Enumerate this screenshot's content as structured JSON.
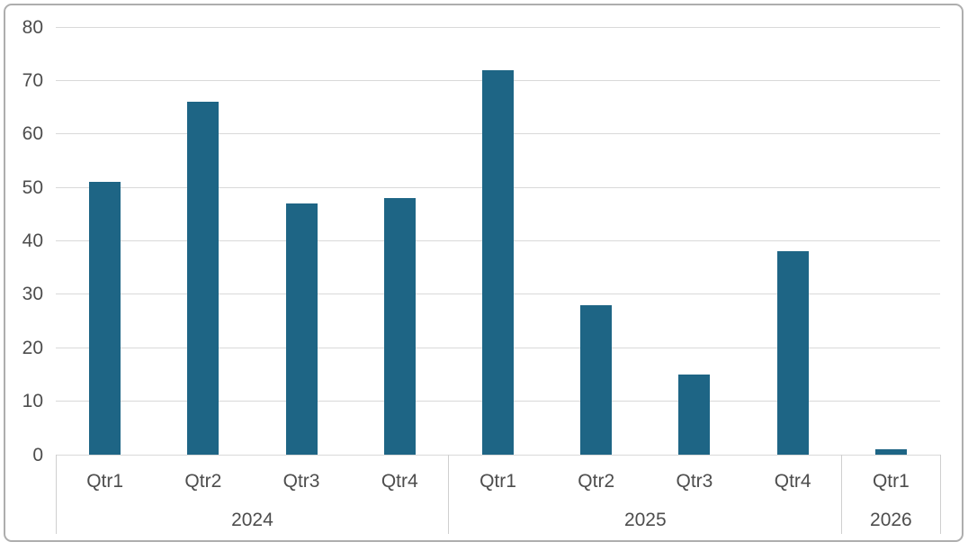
{
  "chart_data": {
    "type": "bar",
    "categories": [
      "Qtr1",
      "Qtr2",
      "Qtr3",
      "Qtr4",
      "Qtr1",
      "Qtr2",
      "Qtr3",
      "Qtr4",
      "Qtr1"
    ],
    "groups": [
      {
        "label": "2024",
        "span": 4
      },
      {
        "label": "2025",
        "span": 4
      },
      {
        "label": "2026",
        "span": 1
      }
    ],
    "values": [
      51,
      66,
      47,
      48,
      72,
      28,
      15,
      38,
      1
    ],
    "ylim": [
      0,
      80
    ],
    "yticks": [
      0,
      10,
      20,
      30,
      40,
      50,
      60,
      70,
      80
    ],
    "grid": true,
    "legend": "none",
    "xlabel": "",
    "ylabel": "",
    "colors": {
      "bar": "#1E6585",
      "gridline": "#D9D9D9",
      "axis_box_line": "#CFCFCF",
      "label_text": "#4D4D4D",
      "frame_border": "#AEAEAE",
      "background": "#FFFFFF"
    }
  }
}
